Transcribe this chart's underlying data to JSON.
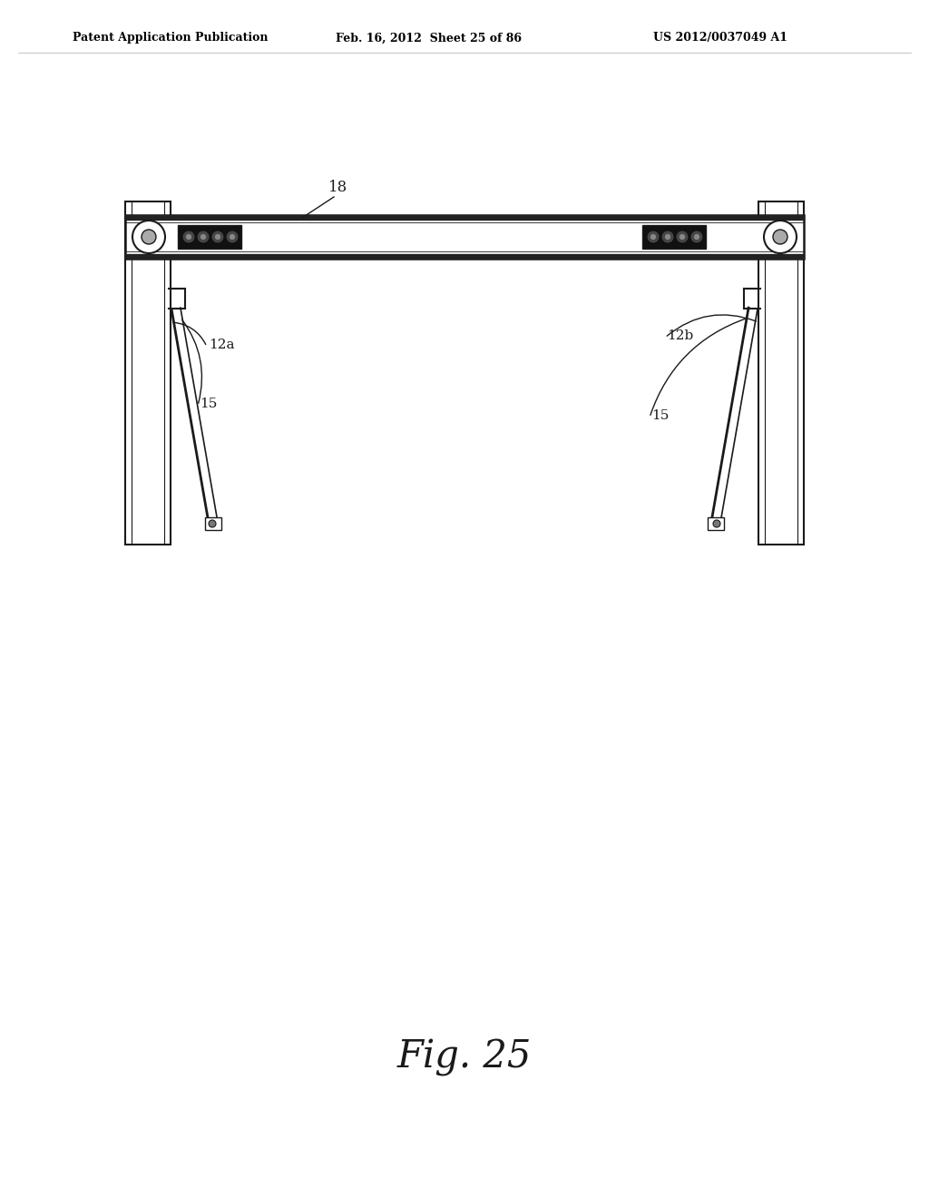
{
  "bg_color": "#ffffff",
  "line_color": "#1a1a1a",
  "header_text": "Patent Application Publication",
  "header_date": "Feb. 16, 2012  Sheet 25 of 86",
  "header_patent": "US 2012/0037049 A1",
  "fig_label": "Fig. 25"
}
